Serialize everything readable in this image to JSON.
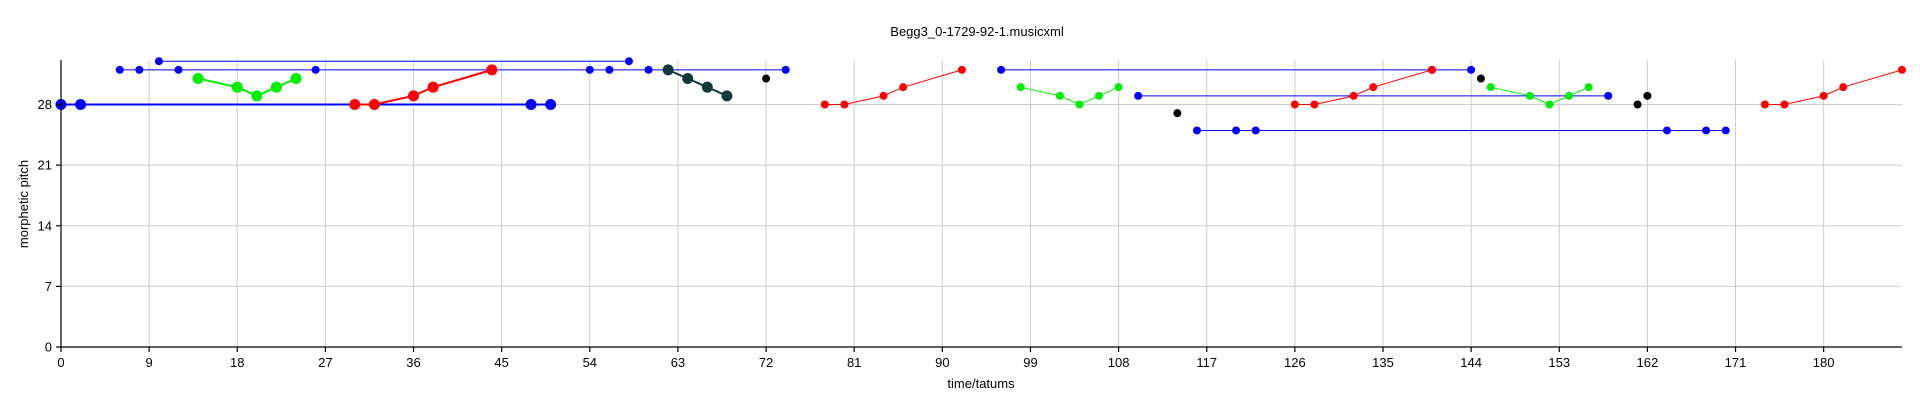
{
  "chart_data": {
    "type": "scatter",
    "title": "Begg3_0-1729-92-1.musicxml",
    "xlabel": "time/tatums",
    "ylabel": "morphetic pitch",
    "xlim": [
      0,
      188
    ],
    "ylim": [
      0,
      33
    ],
    "xticks": [
      0,
      9,
      18,
      27,
      36,
      45,
      54,
      63,
      72,
      81,
      90,
      99,
      108,
      117,
      126,
      135,
      144,
      153,
      162,
      171,
      180
    ],
    "yticks": [
      0,
      7,
      14,
      21,
      28
    ],
    "grid": true,
    "series": [
      {
        "color": "#0000ff",
        "connected": true,
        "large": true,
        "points": [
          [
            0,
            28
          ],
          [
            2,
            28
          ],
          [
            48,
            28
          ],
          [
            50,
            28
          ]
        ]
      },
      {
        "color": "#0000ff",
        "connected": true,
        "large": false,
        "points": [
          [
            6,
            32
          ],
          [
            8,
            32
          ],
          [
            12,
            32
          ],
          [
            26,
            32
          ],
          [
            54,
            32
          ],
          [
            56,
            32
          ],
          [
            60,
            32
          ],
          [
            74,
            32
          ]
        ]
      },
      {
        "color": "#0000ff",
        "connected": true,
        "large": false,
        "points": [
          [
            10,
            33
          ],
          [
            58,
            33
          ]
        ]
      },
      {
        "color": "#00ee00",
        "connected": true,
        "large": true,
        "points": [
          [
            14,
            31
          ],
          [
            18,
            30
          ],
          [
            20,
            29
          ],
          [
            22,
            30
          ],
          [
            24,
            31
          ]
        ]
      },
      {
        "color": "#ff0000",
        "connected": true,
        "large": true,
        "points": [
          [
            30,
            28
          ],
          [
            32,
            28
          ],
          [
            36,
            29
          ],
          [
            38,
            30
          ],
          [
            44,
            32
          ]
        ]
      },
      {
        "color": "#123a3a",
        "connected": true,
        "large": true,
        "points": [
          [
            62,
            32
          ],
          [
            64,
            31
          ],
          [
            66,
            30
          ],
          [
            68,
            29
          ]
        ]
      },
      {
        "color": "#000000",
        "connected": false,
        "large": false,
        "points": [
          [
            72,
            31
          ]
        ]
      },
      {
        "color": "#ff0000",
        "connected": true,
        "large": false,
        "points": [
          [
            78,
            28
          ],
          [
            80,
            28
          ],
          [
            84,
            29
          ],
          [
            86,
            30
          ],
          [
            92,
            32
          ]
        ]
      },
      {
        "color": "#0000ff",
        "connected": true,
        "large": false,
        "points": [
          [
            96,
            32
          ],
          [
            140,
            32
          ],
          [
            144,
            32
          ]
        ]
      },
      {
        "color": "#00ee00",
        "connected": true,
        "large": false,
        "points": [
          [
            98,
            30
          ],
          [
            102,
            29
          ],
          [
            104,
            28
          ],
          [
            106,
            29
          ],
          [
            108,
            30
          ]
        ]
      },
      {
        "color": "#0000ff",
        "connected": true,
        "large": false,
        "points": [
          [
            110,
            29
          ],
          [
            158,
            29
          ]
        ]
      },
      {
        "color": "#000000",
        "connected": false,
        "large": false,
        "points": [
          [
            114,
            27
          ]
        ]
      },
      {
        "color": "#0000ff",
        "connected": true,
        "large": false,
        "points": [
          [
            116,
            25
          ],
          [
            120,
            25
          ],
          [
            122,
            25
          ],
          [
            164,
            25
          ],
          [
            168,
            25
          ],
          [
            170,
            25
          ]
        ]
      },
      {
        "color": "#ff0000",
        "connected": true,
        "large": false,
        "points": [
          [
            126,
            28
          ],
          [
            128,
            28
          ],
          [
            132,
            29
          ],
          [
            134,
            30
          ],
          [
            140,
            32
          ]
        ]
      },
      {
        "color": "#000000",
        "connected": false,
        "large": false,
        "points": [
          [
            145,
            31
          ]
        ]
      },
      {
        "color": "#00ee00",
        "connected": true,
        "large": false,
        "points": [
          [
            146,
            30
          ],
          [
            150,
            29
          ],
          [
            152,
            28
          ],
          [
            154,
            29
          ],
          [
            156,
            30
          ]
        ]
      },
      {
        "color": "#000000",
        "connected": false,
        "large": false,
        "points": [
          [
            161,
            28
          ],
          [
            162,
            29
          ]
        ]
      },
      {
        "color": "#ff0000",
        "connected": true,
        "large": false,
        "points": [
          [
            174,
            28
          ],
          [
            176,
            28
          ],
          [
            180,
            29
          ],
          [
            182,
            30
          ],
          [
            188,
            32
          ]
        ]
      }
    ]
  }
}
